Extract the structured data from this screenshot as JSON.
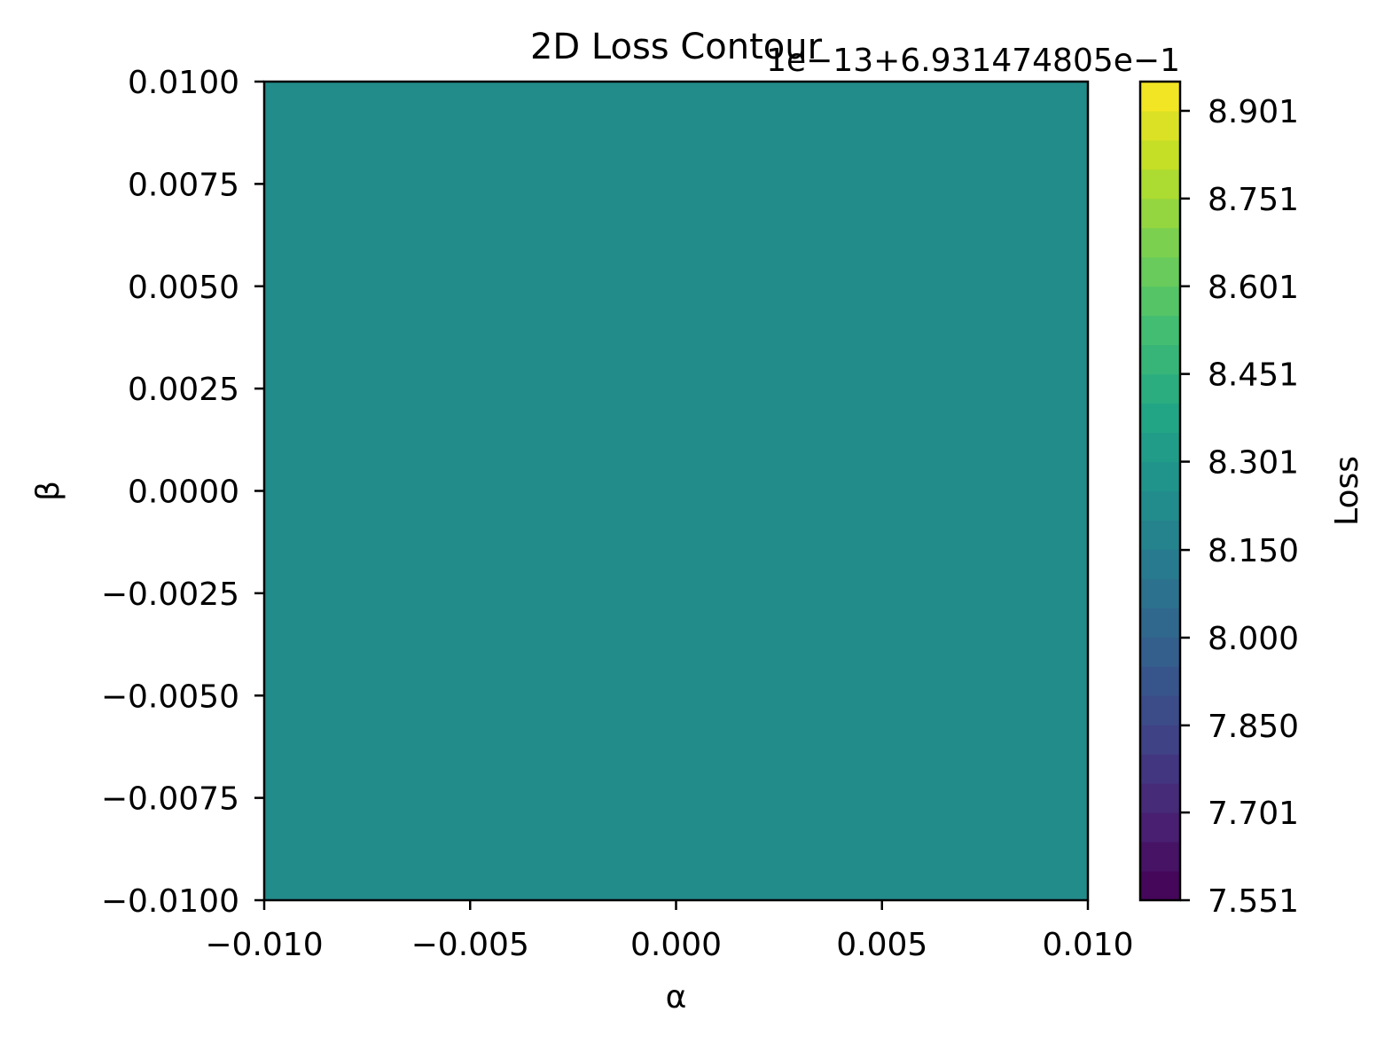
{
  "chart_data": {
    "type": "heatmap",
    "title": "2D Loss Contour",
    "offset_text": "1e−13+6.931474805e−1",
    "xlabel": "α",
    "ylabel": "β",
    "xlim": [
      -0.01,
      0.01
    ],
    "ylim": [
      -0.01,
      0.01
    ],
    "x_ticks": [
      {
        "value": -0.01,
        "label": "−0.010"
      },
      {
        "value": -0.005,
        "label": "−0.005"
      },
      {
        "value": 0.0,
        "label": "0.000"
      },
      {
        "value": 0.005,
        "label": "0.005"
      },
      {
        "value": 0.01,
        "label": "0.010"
      }
    ],
    "y_ticks": [
      {
        "value": 0.01,
        "label": "0.0100"
      },
      {
        "value": 0.0075,
        "label": "0.0075"
      },
      {
        "value": 0.005,
        "label": "0.0050"
      },
      {
        "value": 0.0025,
        "label": "0.0025"
      },
      {
        "value": 0.0,
        "label": "0.0000"
      },
      {
        "value": -0.0025,
        "label": "−0.0025"
      },
      {
        "value": -0.005,
        "label": "−0.0050"
      },
      {
        "value": -0.0075,
        "label": "−0.0075"
      },
      {
        "value": -0.01,
        "label": "−0.0100"
      }
    ],
    "fill_value": 8.23,
    "fill_color": "#228c8a",
    "colorbar": {
      "label": "Loss",
      "colormap": "viridis",
      "range": [
        7.551,
        8.951
      ],
      "ticks": [
        {
          "value": 8.901,
          "label": "8.901"
        },
        {
          "value": 8.751,
          "label": "8.751"
        },
        {
          "value": 8.601,
          "label": "8.601"
        },
        {
          "value": 8.451,
          "label": "8.451"
        },
        {
          "value": 8.301,
          "label": "8.301"
        },
        {
          "value": 8.15,
          "label": "8.150"
        },
        {
          "value": 8.0,
          "label": "8.000"
        },
        {
          "value": 7.85,
          "label": "7.850"
        },
        {
          "value": 7.701,
          "label": "7.701"
        },
        {
          "value": 7.551,
          "label": "7.551"
        }
      ],
      "levels": 28
    },
    "grid": false
  }
}
